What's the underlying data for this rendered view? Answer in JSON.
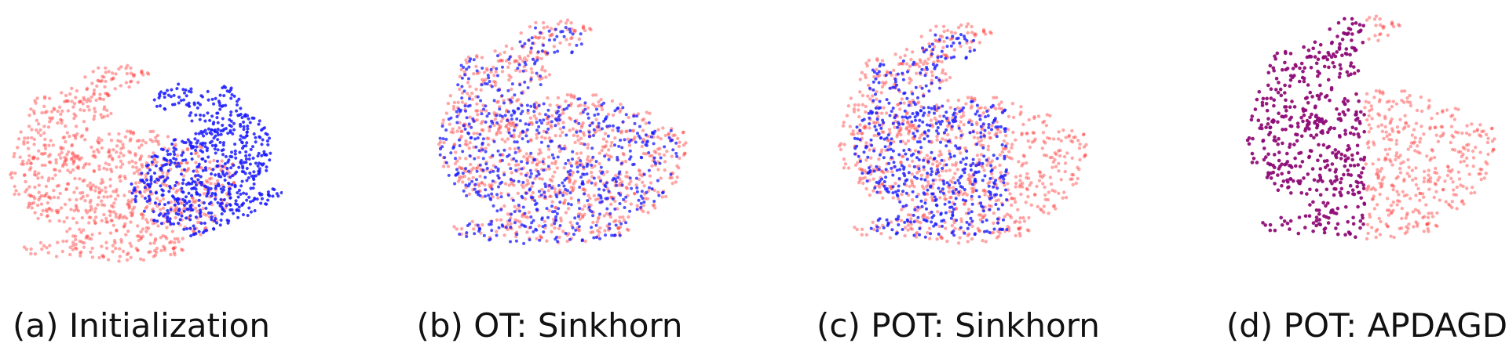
{
  "figure": {
    "colors": {
      "target": "#ff3b3b",
      "source": "#1a1aff",
      "matched": "#8a0a7a"
    },
    "panels": [
      {
        "id": "a",
        "caption": "(a) Initialization"
      },
      {
        "id": "b",
        "caption": "(b) OT: Sinkhorn"
      },
      {
        "id": "c",
        "caption": "(c) POT: Sinkhorn"
      },
      {
        "id": "d",
        "caption": "(d) POT: APDAGD"
      }
    ]
  }
}
